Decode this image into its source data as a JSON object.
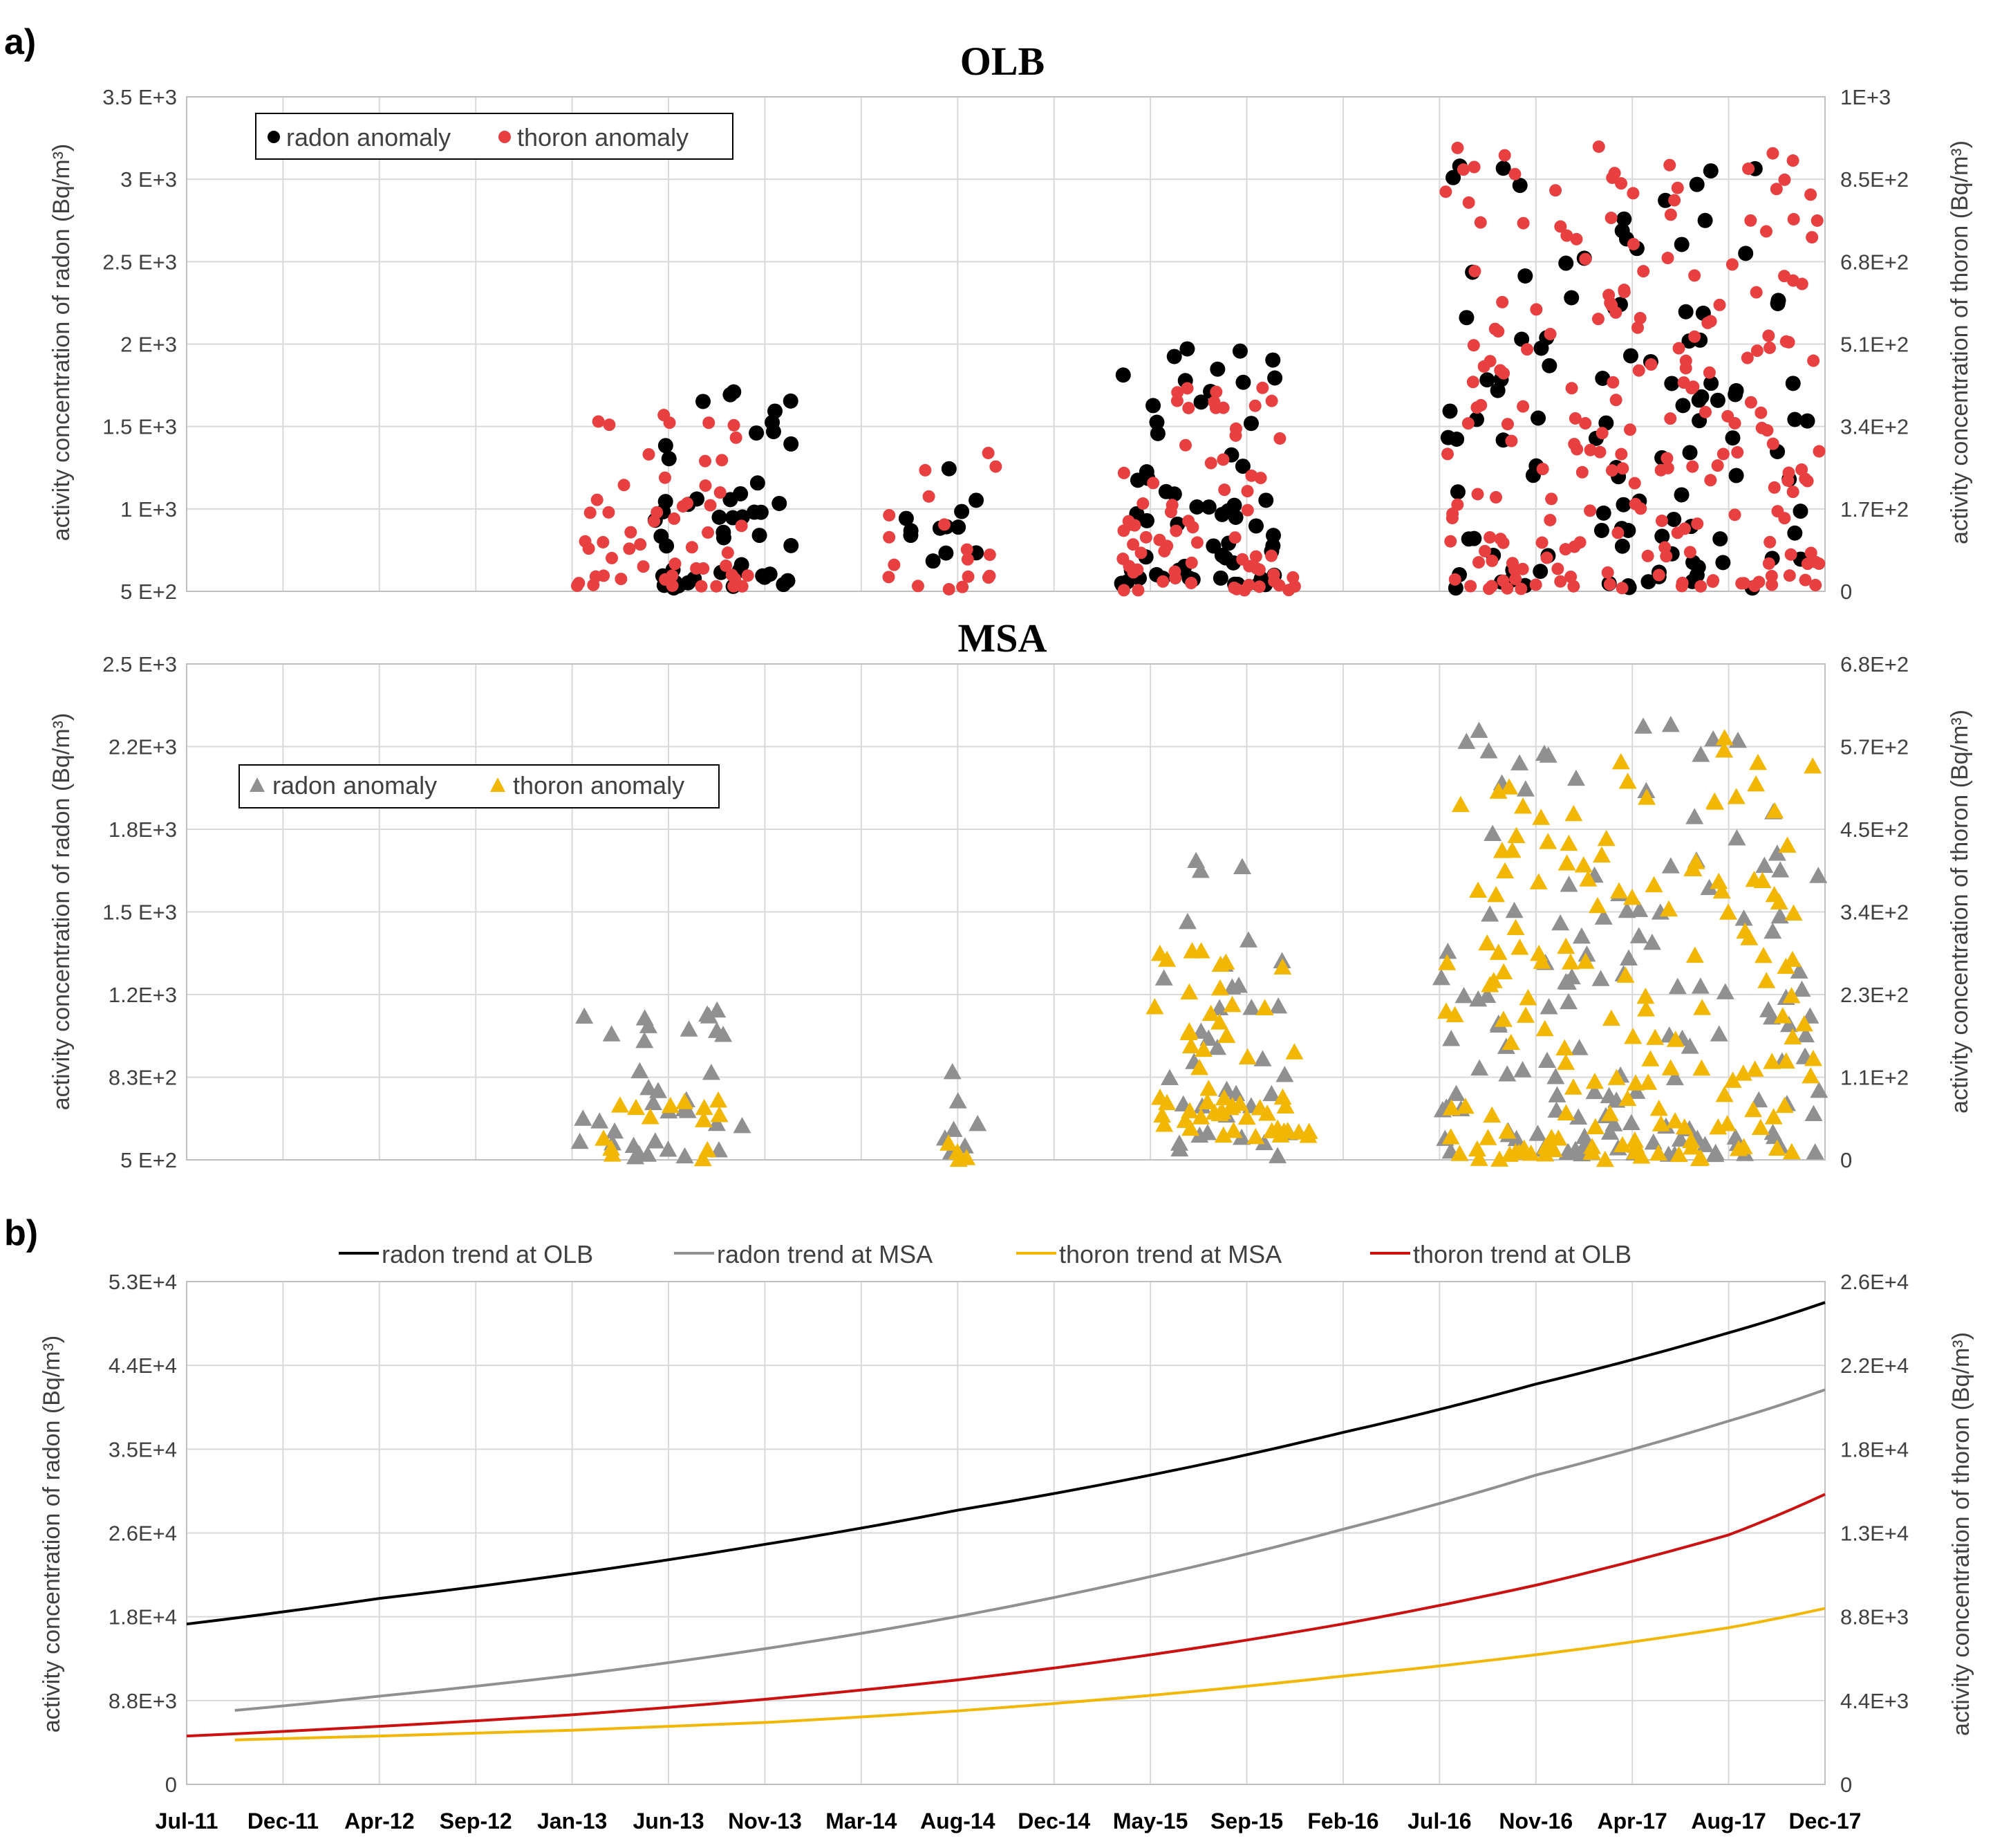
{
  "figure": {
    "panel_a_label": "a)",
    "panel_b_label": "b)",
    "x_tick_labels": [
      "Jul-11",
      "Dec-11",
      "Apr-12",
      "Sep-12",
      "Jan-13",
      "Jun-13",
      "Nov-13",
      "Mar-14",
      "Aug-14",
      "Dec-14",
      "May-15",
      "Sep-15",
      "Feb-16",
      "Jul-16",
      "Nov-16",
      "Apr-17",
      "Aug-17",
      "Dec-17"
    ]
  },
  "chart_data": [
    {
      "id": "olb",
      "type": "scatter",
      "title": "OLB",
      "ylabel_left": "activity  concentration of radon (Bq/m³)",
      "ylabel_right": "activity  concentration of thoron (Bq/m³)",
      "y_ticks_left": [
        "5 E+2",
        "1 E+3",
        "1.5 E+3",
        "2 E+3",
        "2.5 E+3",
        "3 E+3",
        "3.5 E+3"
      ],
      "y_ticks_right": [
        "0",
        "1.7E+2",
        "3.4E+2",
        "5.1E+2",
        "6.8E+2",
        "8.5E+2",
        "1E+3"
      ],
      "ylim_left": [
        500,
        3500
      ],
      "ylim_right": [
        0,
        1000
      ],
      "xlim": [
        0,
        17
      ],
      "grid": true,
      "legend": {
        "position": "top-left",
        "entries": [
          "radon anomaly",
          "thoron anomaly"
        ]
      },
      "series": [
        {
          "name": "radon anomaly",
          "axis": "left",
          "marker": "circle",
          "color": "#000000",
          "clusters": [
            {
              "x_range": [
                4.8,
                6.35
              ],
              "count": 48,
              "y_range": [
                520,
                1780
              ]
            },
            {
              "x_range": [
                7.35,
                8.25
              ],
              "count": 12,
              "y_range": [
                540,
                1260
              ]
            },
            {
              "x_range": [
                9.7,
                11.3
              ],
              "count": 60,
              "y_range": [
                540,
                2040
              ]
            },
            {
              "x_range": [
                13.05,
                16.85
              ],
              "count": 110,
              "y_range": [
                520,
                3160
              ]
            }
          ]
        },
        {
          "name": "thoron anomaly",
          "axis": "right",
          "marker": "circle",
          "color": "#e84040",
          "clusters": [
            {
              "x_range": [
                4.0,
                5.9
              ],
              "count": 55,
              "y_range": [
                10,
                360
              ]
            },
            {
              "x_range": [
                7.1,
                8.4
              ],
              "count": 18,
              "y_range": [
                2,
                320
              ]
            },
            {
              "x_range": [
                9.7,
                11.5
              ],
              "count": 70,
              "y_range": [
                2,
                430
              ]
            },
            {
              "x_range": [
                13.05,
                16.95
              ],
              "count": 210,
              "y_range": [
                5,
                900
              ]
            }
          ]
        }
      ]
    },
    {
      "id": "msa",
      "type": "scatter",
      "title": "MSA",
      "ylabel_left": "activity  concentration of radon (Bq/m³)",
      "ylabel_right": "activity  concentration of thoron (Bq/m³)",
      "y_ticks_left": [
        "5 E+2",
        "8.3E+2",
        "1.2E+3",
        "1.5 E+3",
        "1.8E+3",
        "2.2E+3",
        "2.5 E+3"
      ],
      "y_ticks_right": [
        "0",
        "1.1E+2",
        "2.3E+2",
        "3.4E+2",
        "4.5E+2",
        "5.7E+2",
        "6.8E+2"
      ],
      "ylim_left": [
        500,
        2500
      ],
      "ylim_right": [
        0,
        680
      ],
      "xlim": [
        0,
        17
      ],
      "grid": true,
      "legend": {
        "position": "top-left",
        "entries": [
          "radon anomaly",
          "thoron anomaly"
        ]
      },
      "series": [
        {
          "name": "radon anomaly",
          "axis": "left",
          "marker": "triangle",
          "color": "#909090",
          "clusters": [
            {
              "x_range": [
                4.0,
                5.8
              ],
              "count": 35,
              "y_range": [
                510,
                1110
              ]
            },
            {
              "x_range": [
                7.8,
                8.25
              ],
              "count": 7,
              "y_range": [
                520,
                880
              ]
            },
            {
              "x_range": [
                10.0,
                11.5
              ],
              "count": 35,
              "y_range": [
                510,
                1720
              ]
            },
            {
              "x_range": [
                13.0,
                16.95
              ],
              "count": 140,
              "y_range": [
                520,
                2300
              ]
            }
          ]
        },
        {
          "name": "thoron anomaly",
          "axis": "right",
          "marker": "triangle",
          "color": "#f2b705",
          "clusters": [
            {
              "x_range": [
                4.0,
                5.7
              ],
              "count": 14,
              "y_range": [
                1,
                100
              ]
            },
            {
              "x_range": [
                7.9,
                8.1
              ],
              "count": 4,
              "y_range": [
                0,
                30
              ]
            },
            {
              "x_range": [
                10.0,
                11.7
              ],
              "count": 55,
              "y_range": [
                30,
                290
              ]
            },
            {
              "x_range": [
                13.0,
                16.95
              ],
              "count": 160,
              "y_range": [
                0,
                580
              ]
            }
          ]
        }
      ]
    },
    {
      "id": "trends",
      "type": "line",
      "ylabel_left": "activity  concentration of radon (Bq/m³)",
      "ylabel_right": "activity  concentration of thoron (Bq/m³)",
      "y_ticks_left": [
        "0",
        "8.8E+3",
        "1.8E+4",
        "2.6E+4",
        "3.5E+4",
        "4.4E+4",
        "5.3E+4"
      ],
      "y_ticks_right": [
        "0",
        "4.4E+3",
        "8.8E+3",
        "1.3E+4",
        "1.8E+4",
        "2.2E+4",
        "2.6E+4"
      ],
      "ylim_left": [
        0,
        53000
      ],
      "ylim_right": [
        0,
        26000
      ],
      "xlim": [
        0,
        17
      ],
      "grid": true,
      "legend": {
        "position": "top"
      },
      "series": [
        {
          "name": "radon trend at OLB",
          "axis": "left",
          "color": "#000000",
          "x": [
            0,
            2,
            4,
            6,
            8,
            10,
            12,
            14,
            16,
            17
          ],
          "values": [
            16900,
            19600,
            22200,
            25300,
            28900,
            32600,
            37100,
            42200,
            47600,
            50800
          ]
        },
        {
          "name": "radon trend at MSA",
          "axis": "left",
          "color": "#909090",
          "x": [
            0.5,
            2,
            4,
            6,
            8,
            10,
            12,
            14,
            16,
            17
          ],
          "values": [
            7800,
            9300,
            11500,
            14300,
            17700,
            21900,
            26900,
            32600,
            38300,
            41600
          ]
        },
        {
          "name": "thoron trend at MSA",
          "axis": "right",
          "color": "#f2b705",
          "x": [
            0.5,
            2,
            4,
            6,
            8,
            10,
            12,
            14,
            16,
            17
          ],
          "values": [
            2300,
            2500,
            2800,
            3200,
            3800,
            4600,
            5600,
            6700,
            8100,
            9100
          ]
        },
        {
          "name": "thoron trend at OLB",
          "axis": "right",
          "color": "#cc1111",
          "x": [
            0,
            2,
            4,
            6,
            8,
            10,
            12,
            14,
            16,
            17
          ],
          "values": [
            2500,
            3000,
            3600,
            4400,
            5400,
            6700,
            8300,
            10300,
            12900,
            15000
          ]
        }
      ]
    }
  ],
  "colors": {
    "radon_olb": "#000000",
    "thoron_olb": "#e84040",
    "radon_msa": "#909090",
    "thoron_msa": "#f2b705",
    "thoron_trend_olb": "#cc1111",
    "grid": "#d9d9d9"
  }
}
